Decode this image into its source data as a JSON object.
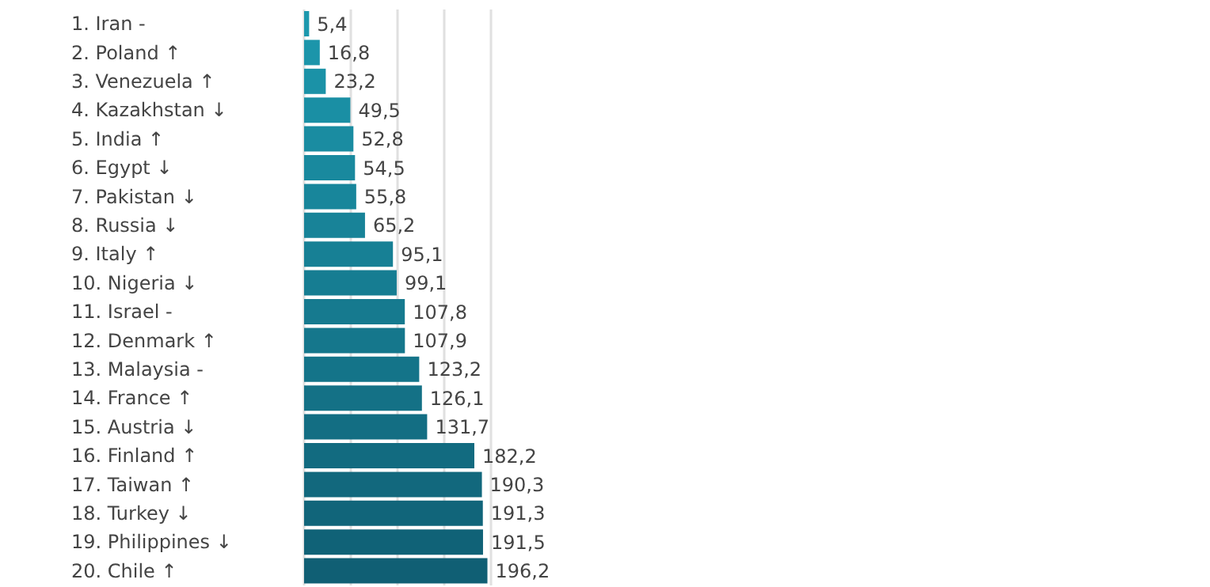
{
  "chart_data": {
    "type": "bar",
    "orientation": "horizontal",
    "categories": [
      "1. Iran -",
      "2. Poland ↑",
      "3. Venezuela ↑",
      "4. Kazakhstan ↓",
      "5. India ↑",
      "6. Egypt ↓",
      "7. Pakistan ↓",
      "8. Russia ↓",
      "9. Italy ↑",
      "10. Nigeria ↓",
      "11. Israel -",
      "12. Denmark ↑",
      "13. Malaysia -",
      "14. France ↑",
      "15. Austria ↓",
      "16. Finland ↑",
      "17. Taiwan ↑",
      "18. Turkey ↓",
      "19. Philippines ↓",
      "20. Chile ↑"
    ],
    "values": [
      5.4,
      16.8,
      23.2,
      49.5,
      52.8,
      54.5,
      55.8,
      65.2,
      95.1,
      99.1,
      107.8,
      107.9,
      123.2,
      126.1,
      131.7,
      182.2,
      190.3,
      191.3,
      191.5,
      196.2
    ],
    "colors": [
      "#1d98ad",
      "#1c95aa",
      "#1b92a7",
      "#1a8fa4",
      "#1a8ca1",
      "#19899e",
      "#18869b",
      "#188398",
      "#178095",
      "#167d92",
      "#167a8f",
      "#15778c",
      "#147489",
      "#147186",
      "#136e83",
      "#126b80",
      "#12687d",
      "#11657a",
      "#106277",
      "#105f74"
    ],
    "value_labels": [
      "5,4",
      "16,8",
      "23,2",
      "49,5",
      "52,8",
      "54,5",
      "55,8",
      "65,2",
      "95,1",
      "99,1",
      "107,8",
      "107,9",
      "123,2",
      "126,1",
      "131,7",
      "182,2",
      "190,3",
      "191,3",
      "191,5",
      "196,2"
    ],
    "tick_labels": "y",
    "grid": "x"
  }
}
